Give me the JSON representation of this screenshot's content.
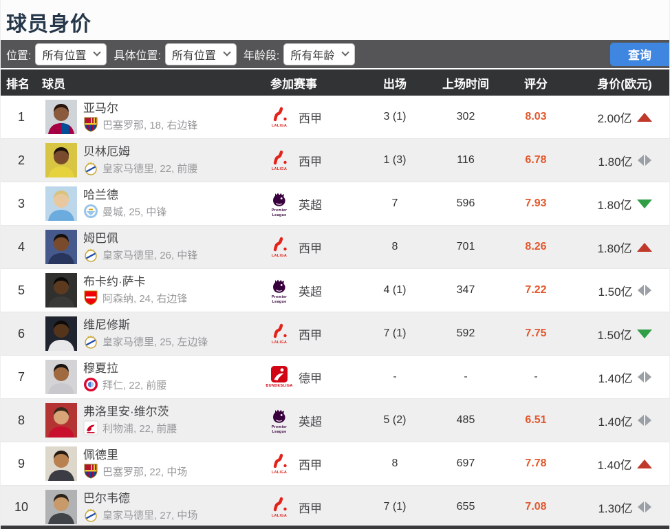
{
  "page": {
    "title": "球员身价"
  },
  "filters": {
    "fields": [
      {
        "label": "位置:",
        "value": "所有位置"
      },
      {
        "label": "具体位置:",
        "value": "所有位置"
      },
      {
        "label": "年龄段:",
        "value": "所有年龄"
      }
    ],
    "search_label": "查询"
  },
  "table": {
    "headers": [
      "排名",
      "球员",
      "参加赛事",
      "出场",
      "上场时间",
      "评分",
      "身价(欧元)"
    ],
    "league_logos": {
      "laliga": {
        "caption": "LALIGA",
        "color": "#e32219"
      },
      "epl": {
        "caption": "Premier League",
        "color": "#38003c"
      },
      "bundesliga": {
        "caption": "BUNDESLIGA",
        "color": "#d20515"
      }
    },
    "rows": [
      {
        "rank": "1",
        "name": "亚马尔",
        "meta": "巴塞罗那, 18, 右边锋",
        "club": "barcelona",
        "league": "laliga",
        "league_label": "西甲",
        "apps": "3 (1)",
        "minutes": "302",
        "rating": "8.03",
        "value": "2.00亿",
        "trend": "up"
      },
      {
        "rank": "2",
        "name": "贝林厄姆",
        "meta": "皇家马德里, 22, 前腰",
        "club": "realmadrid",
        "league": "laliga",
        "league_label": "西甲",
        "apps": "1 (3)",
        "minutes": "116",
        "rating": "6.78",
        "value": "1.80亿",
        "trend": "flat"
      },
      {
        "rank": "3",
        "name": "哈兰德",
        "meta": "曼城, 25, 中锋",
        "club": "mancity",
        "league": "epl",
        "league_label": "英超",
        "apps": "7",
        "minutes": "596",
        "rating": "7.93",
        "value": "1.80亿",
        "trend": "down"
      },
      {
        "rank": "4",
        "name": "姆巴佩",
        "meta": "皇家马德里, 26, 中锋",
        "club": "realmadrid",
        "league": "laliga",
        "league_label": "西甲",
        "apps": "8",
        "minutes": "701",
        "rating": "8.26",
        "value": "1.80亿",
        "trend": "up"
      },
      {
        "rank": "5",
        "name": "布卡约·萨卡",
        "meta": "阿森纳, 24, 右边锋",
        "club": "arsenal",
        "league": "epl",
        "league_label": "英超",
        "apps": "4 (1)",
        "minutes": "347",
        "rating": "7.22",
        "value": "1.50亿",
        "trend": "flat"
      },
      {
        "rank": "6",
        "name": "维尼修斯",
        "meta": "皇家马德里, 25, 左边锋",
        "club": "realmadrid",
        "league": "laliga",
        "league_label": "西甲",
        "apps": "7 (1)",
        "minutes": "592",
        "rating": "7.75",
        "value": "1.50亿",
        "trend": "down"
      },
      {
        "rank": "7",
        "name": "穆夏拉",
        "meta": "拜仁, 22, 前腰",
        "club": "bayern",
        "league": "bundesliga",
        "league_label": "德甲",
        "apps": "-",
        "minutes": "-",
        "rating": "-",
        "value": "1.40亿",
        "trend": "flat"
      },
      {
        "rank": "8",
        "name": "弗洛里安·维尔茨",
        "meta": "利物浦, 22, 前腰",
        "club": "liverpool",
        "league": "epl",
        "league_label": "英超",
        "apps": "5 (2)",
        "minutes": "485",
        "rating": "6.51",
        "value": "1.40亿",
        "trend": "flat"
      },
      {
        "rank": "9",
        "name": "佩德里",
        "meta": "巴塞罗那, 22, 中场",
        "club": "barcelona",
        "league": "laliga",
        "league_label": "西甲",
        "apps": "8",
        "minutes": "697",
        "rating": "7.78",
        "value": "1.40亿",
        "trend": "up"
      },
      {
        "rank": "10",
        "name": "巴尔韦德",
        "meta": "皇家马德里, 27, 中场",
        "club": "realmadrid",
        "league": "laliga",
        "league_label": "西甲",
        "apps": "7 (1)",
        "minutes": "655",
        "rating": "7.08",
        "value": "1.30亿",
        "trend": "flat"
      }
    ]
  },
  "colors": {
    "search_button": "#3e86df",
    "rating_text": "#e2572b",
    "trend_up": "#c0392b",
    "trend_down": "#2f9e44",
    "trend_flat": "#9aa0a6"
  }
}
